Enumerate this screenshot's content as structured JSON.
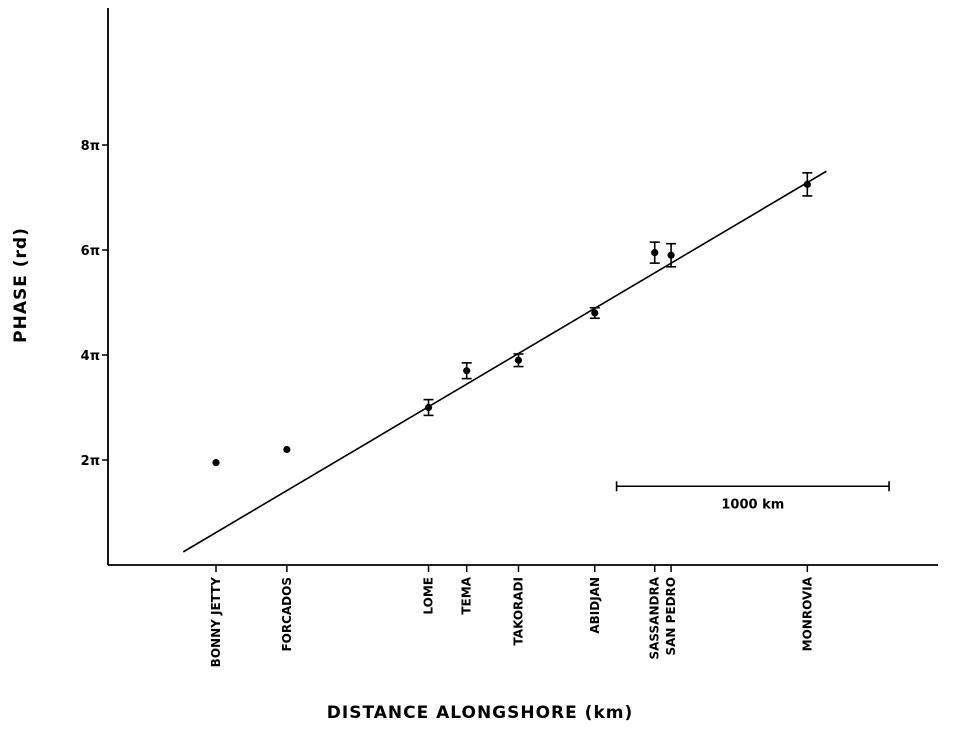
{
  "chart_data": {
    "type": "scatter",
    "title": "",
    "xlabel": "DISTANCE ALONGSHORE (km)",
    "ylabel": "PHASE (rd)",
    "ylim_pi": [
      0,
      10
    ],
    "y_unit": "π",
    "y_ticks": [
      {
        "value_pi": 2,
        "label": "2π"
      },
      {
        "value_pi": 4,
        "label": "4π"
      },
      {
        "value_pi": 6,
        "label": "6π"
      },
      {
        "value_pi": 8,
        "label": "8π"
      }
    ],
    "xlim_km": [
      -1000,
      4000
    ],
    "stations": [
      {
        "name": "BONNY JETTY",
        "x_km": 0,
        "phase_pi": 1.95,
        "err_pi": 0
      },
      {
        "name": "FORCADOS",
        "x_km": 260,
        "phase_pi": 2.2,
        "err_pi": 0
      },
      {
        "name": "LOME",
        "x_km": 780,
        "phase_pi": 3.0,
        "err_pi": 0.15
      },
      {
        "name": "TEMA",
        "x_km": 920,
        "phase_pi": 3.7,
        "err_pi": 0.15
      },
      {
        "name": "TAKORADI",
        "x_km": 1110,
        "phase_pi": 3.9,
        "err_pi": 0.12
      },
      {
        "name": "ABIDJAN",
        "x_km": 1390,
        "phase_pi": 4.8,
        "err_pi": 0.1
      },
      {
        "name": "SASSANDRA",
        "x_km": 1610,
        "phase_pi": 5.95,
        "err_pi": 0.2
      },
      {
        "name": "SAN PEDRO",
        "x_km": 1670,
        "phase_pi": 5.9,
        "err_pi": 0.22
      },
      {
        "name": "MONROVIA",
        "x_km": 2170,
        "phase_pi": 7.25,
        "err_pi": 0.22
      }
    ],
    "fit_line": {
      "x_km": [
        -120,
        2240
      ],
      "phase_pi": [
        0.25,
        7.5
      ]
    },
    "scale_bar": {
      "label": "1000 km",
      "start_km": 1470,
      "length_km": 1000,
      "phase_pi": 1.5
    },
    "grid": false,
    "legend": "none"
  }
}
